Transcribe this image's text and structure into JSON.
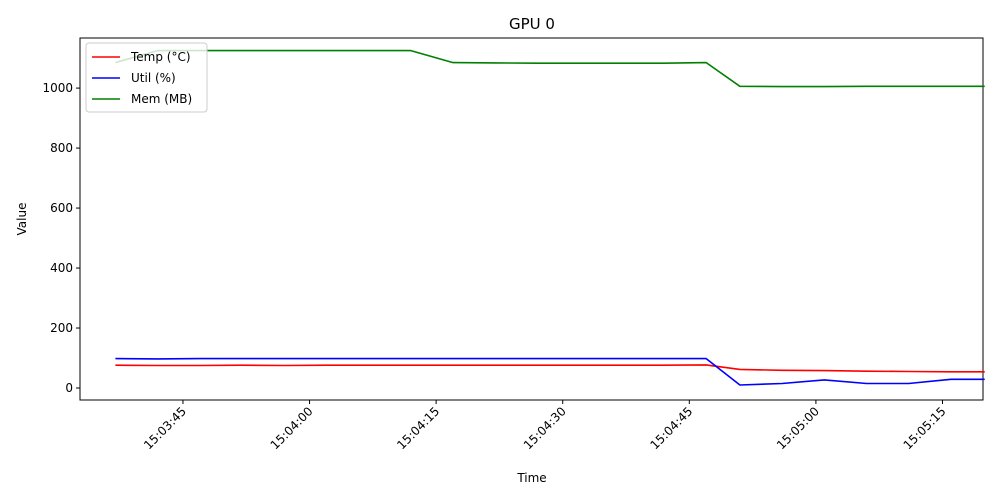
{
  "chart_data": {
    "type": "line",
    "title": "GPU 0",
    "xlabel": "Time",
    "ylabel": "Value",
    "x_tick_labels": [
      "15:03:45",
      "15:04:00",
      "15:04:15",
      "15:04:30",
      "15:04:45",
      "15:05:00",
      "15:05:15"
    ],
    "x_tick_seconds": [
      45,
      60,
      75,
      90,
      105,
      120,
      135
    ],
    "x_range_seconds": [
      32.8,
      139.8
    ],
    "y_ticks": [
      0,
      200,
      400,
      600,
      800,
      1000
    ],
    "ylim": [
      -40,
      1167
    ],
    "grid": false,
    "legend_position": "upper-left",
    "x_seconds": [
      37,
      42,
      47,
      52,
      57,
      62,
      67,
      72,
      77,
      82,
      87,
      92,
      97,
      102,
      107,
      111,
      116,
      121,
      126,
      131,
      136,
      140
    ],
    "series": [
      {
        "name": "Temp (°C)",
        "color": "#ff0000",
        "values": [
          76,
          75,
          75,
          76,
          75,
          76,
          76,
          76,
          76,
          76,
          76,
          76,
          76,
          76,
          77,
          62,
          59,
          58,
          56,
          55,
          54,
          54
        ]
      },
      {
        "name": "Util (%)",
        "color": "#0000ff",
        "values": [
          98,
          97,
          98,
          98,
          98,
          98,
          98,
          98,
          98,
          98,
          98,
          98,
          98,
          98,
          98,
          10,
          15,
          27,
          15,
          15,
          29,
          29
        ]
      },
      {
        "name": "Mem (MB)",
        "color": "#008000",
        "values": [
          1085,
          1125,
          1125,
          1125,
          1125,
          1125,
          1125,
          1125,
          1085,
          1084,
          1083,
          1083,
          1083,
          1083,
          1085,
          1006,
          1005,
          1005,
          1006,
          1006,
          1006,
          1006
        ]
      }
    ]
  }
}
